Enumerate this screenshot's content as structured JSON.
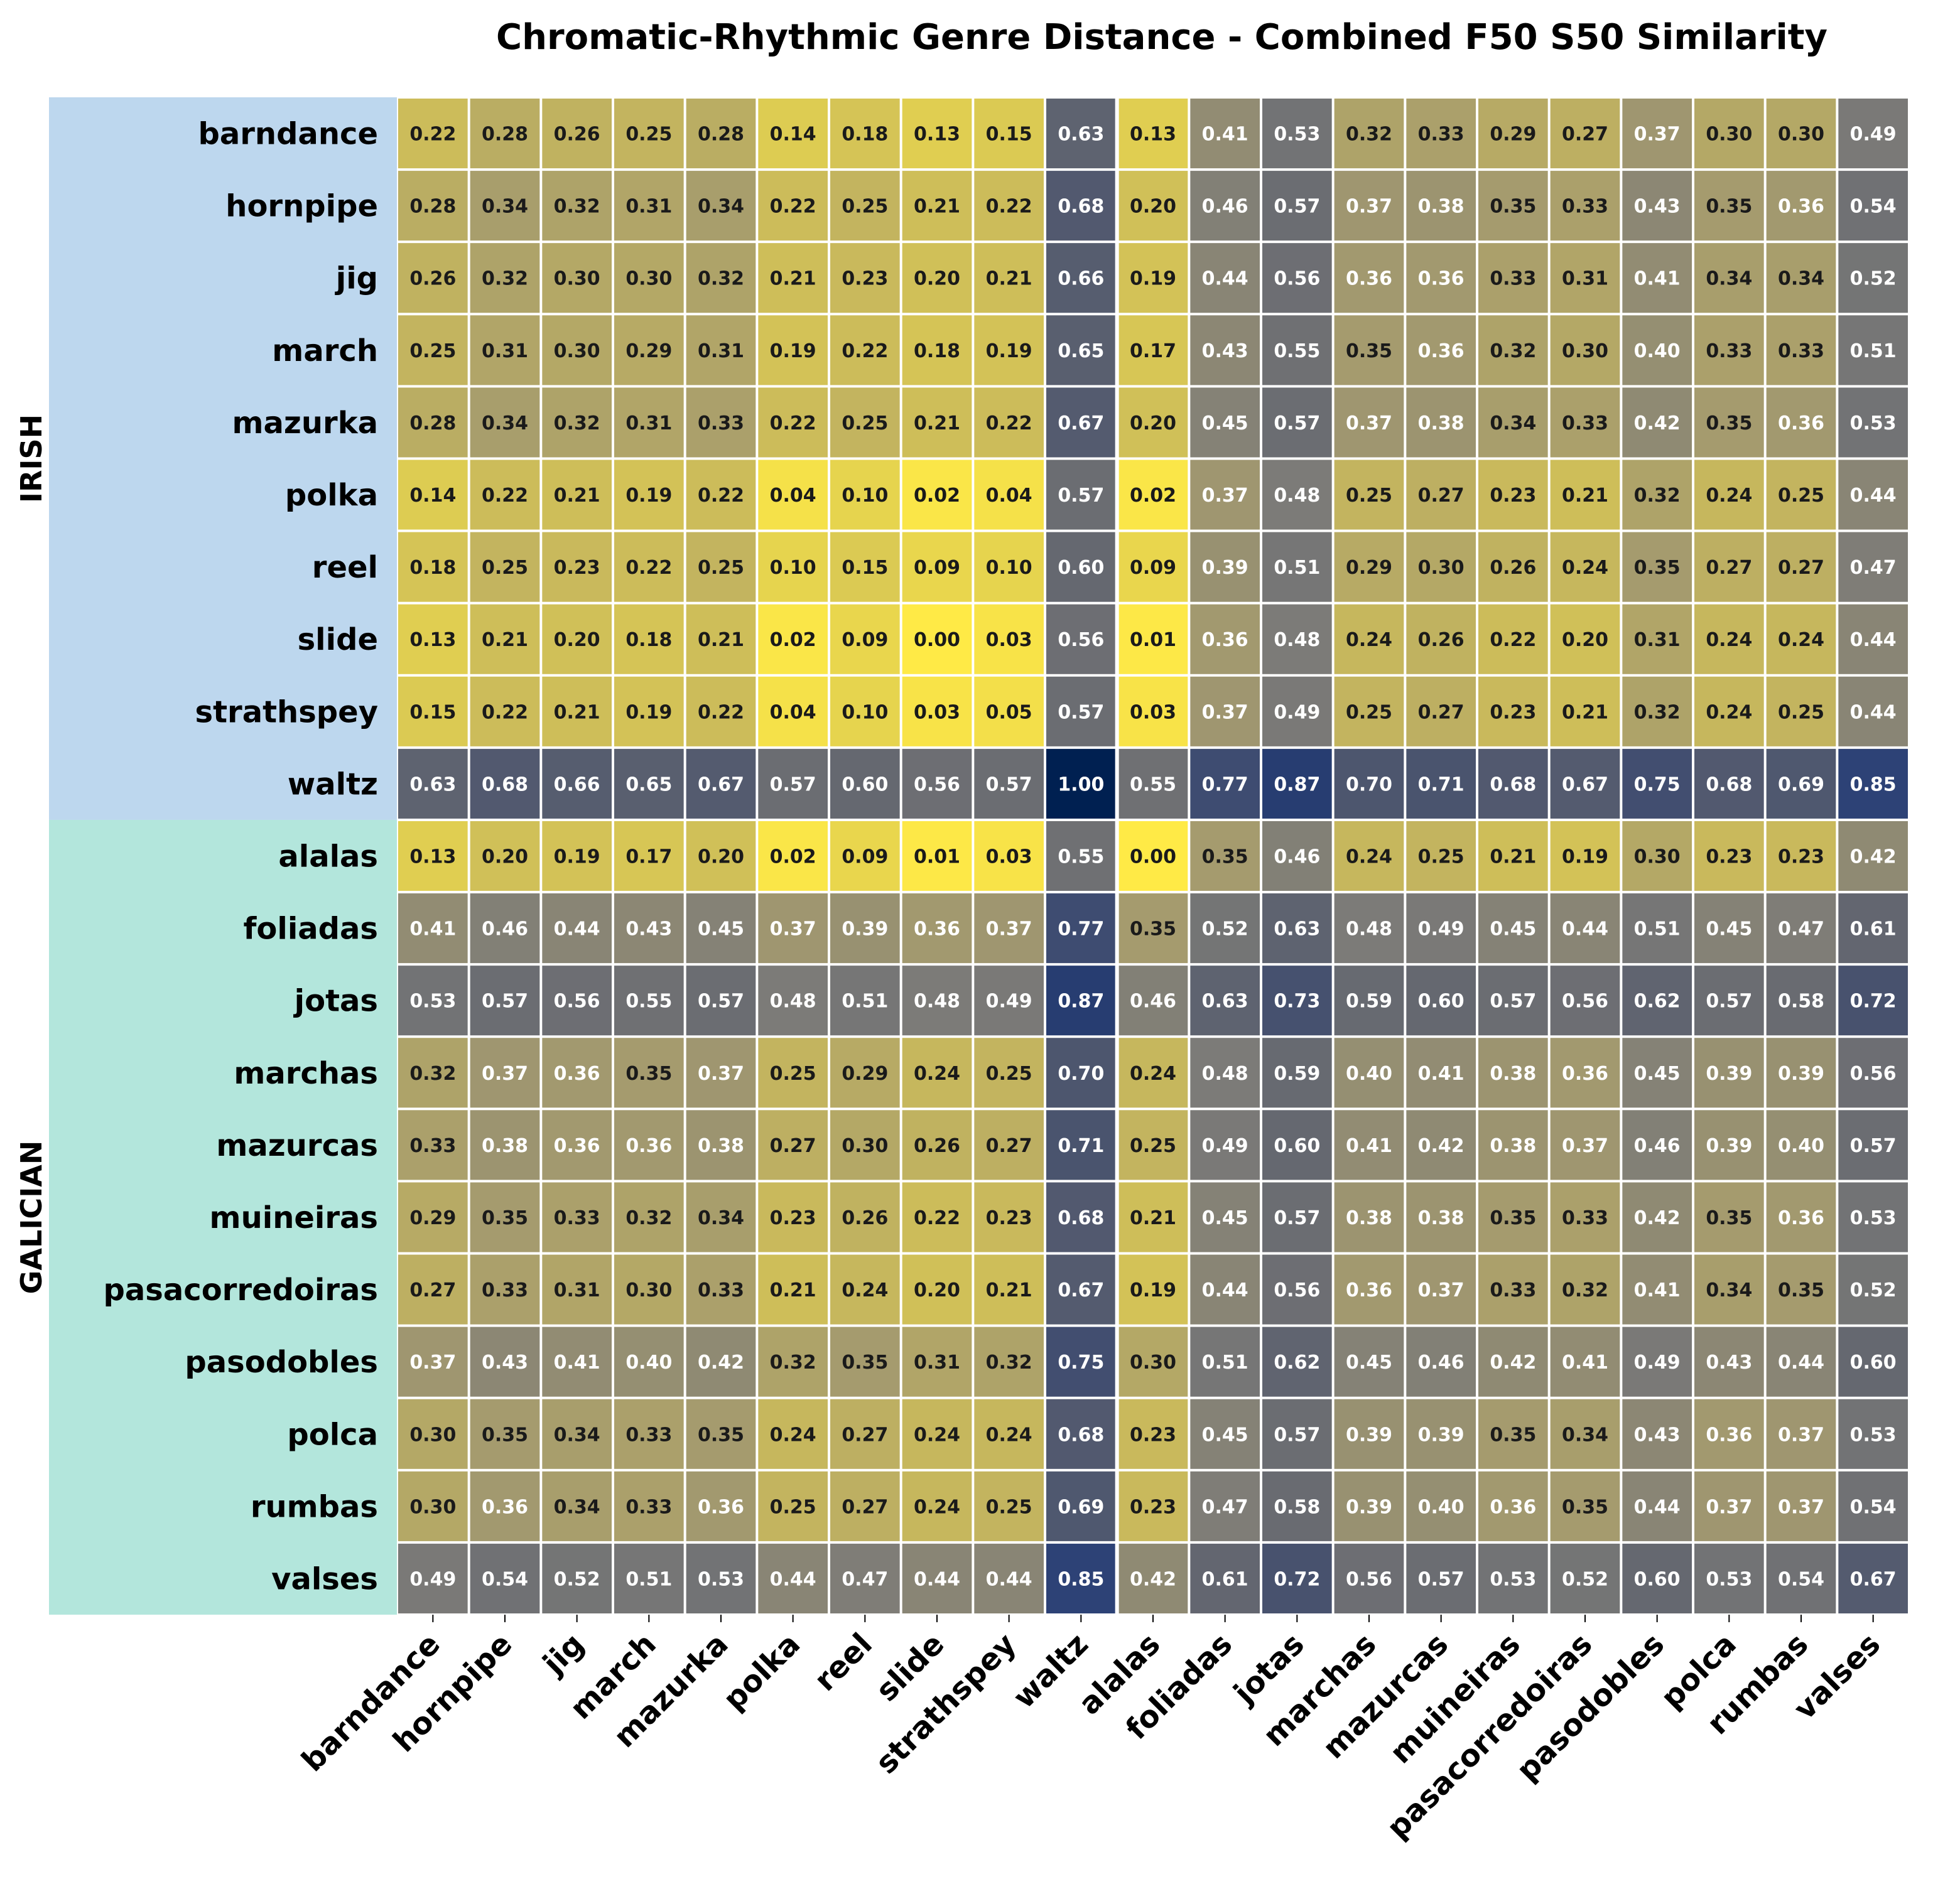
{
  "chart_data": {
    "type": "heatmap",
    "title": "Chromatic-Rhythmic Genre Distance - Combined F50 S50 Similarity",
    "rows": [
      "barndance",
      "hornpipe",
      "jig",
      "march",
      "mazurka",
      "polka",
      "reel",
      "slide",
      "strathspey",
      "waltz",
      "alalas",
      "foliadas",
      "jotas",
      "marchas",
      "mazurcas",
      "muineiras",
      "pasacorredoiras",
      "pasodobles",
      "polca",
      "rumbas",
      "valses"
    ],
    "columns": [
      "barndance",
      "hornpipe",
      "jig",
      "march",
      "mazurka",
      "polka",
      "reel",
      "slide",
      "strathspey",
      "waltz",
      "alalas",
      "foliadas",
      "jotas",
      "marchas",
      "mazurcas",
      "muineiras",
      "pasacorredoiras",
      "pasodobles",
      "polca",
      "rumbas",
      "valses"
    ],
    "row_groups": [
      {
        "name": "IRISH",
        "count": 10,
        "color": "#bdd7ee"
      },
      {
        "name": "GALICIAN",
        "count": 11,
        "color": "#b3e6dc"
      }
    ],
    "values": [
      [
        0.22,
        0.28,
        0.26,
        0.25,
        0.28,
        0.14,
        0.18,
        0.13,
        0.15,
        0.63,
        0.13,
        0.41,
        0.53,
        0.32,
        0.33,
        0.29,
        0.27,
        0.37,
        0.3,
        0.3,
        0.49
      ],
      [
        0.28,
        0.34,
        0.32,
        0.31,
        0.34,
        0.22,
        0.25,
        0.21,
        0.22,
        0.68,
        0.2,
        0.46,
        0.57,
        0.37,
        0.38,
        0.35,
        0.33,
        0.43,
        0.35,
        0.36,
        0.54
      ],
      [
        0.26,
        0.32,
        0.3,
        0.3,
        0.32,
        0.21,
        0.23,
        0.2,
        0.21,
        0.66,
        0.19,
        0.44,
        0.56,
        0.36,
        0.36,
        0.33,
        0.31,
        0.41,
        0.34,
        0.34,
        0.52
      ],
      [
        0.25,
        0.31,
        0.3,
        0.29,
        0.31,
        0.19,
        0.22,
        0.18,
        0.19,
        0.65,
        0.17,
        0.43,
        0.55,
        0.35,
        0.36,
        0.32,
        0.3,
        0.4,
        0.33,
        0.33,
        0.51
      ],
      [
        0.28,
        0.34,
        0.32,
        0.31,
        0.33,
        0.22,
        0.25,
        0.21,
        0.22,
        0.67,
        0.2,
        0.45,
        0.57,
        0.37,
        0.38,
        0.34,
        0.33,
        0.42,
        0.35,
        0.36,
        0.53
      ],
      [
        0.14,
        0.22,
        0.21,
        0.19,
        0.22,
        0.04,
        0.1,
        0.02,
        0.04,
        0.57,
        0.02,
        0.37,
        0.48,
        0.25,
        0.27,
        0.23,
        0.21,
        0.32,
        0.24,
        0.25,
        0.44
      ],
      [
        0.18,
        0.25,
        0.23,
        0.22,
        0.25,
        0.1,
        0.15,
        0.09,
        0.1,
        0.6,
        0.09,
        0.39,
        0.51,
        0.29,
        0.3,
        0.26,
        0.24,
        0.35,
        0.27,
        0.27,
        0.47
      ],
      [
        0.13,
        0.21,
        0.2,
        0.18,
        0.21,
        0.02,
        0.09,
        0.0,
        0.03,
        0.56,
        0.01,
        0.36,
        0.48,
        0.24,
        0.26,
        0.22,
        0.2,
        0.31,
        0.24,
        0.24,
        0.44
      ],
      [
        0.15,
        0.22,
        0.21,
        0.19,
        0.22,
        0.04,
        0.1,
        0.03,
        0.05,
        0.57,
        0.03,
        0.37,
        0.49,
        0.25,
        0.27,
        0.23,
        0.21,
        0.32,
        0.24,
        0.25,
        0.44
      ],
      [
        0.63,
        0.68,
        0.66,
        0.65,
        0.67,
        0.57,
        0.6,
        0.56,
        0.57,
        1.0,
        0.55,
        0.77,
        0.87,
        0.7,
        0.71,
        0.68,
        0.67,
        0.75,
        0.68,
        0.69,
        0.85
      ],
      [
        0.13,
        0.2,
        0.19,
        0.17,
        0.2,
        0.02,
        0.09,
        0.01,
        0.03,
        0.55,
        0.0,
        0.35,
        0.46,
        0.24,
        0.25,
        0.21,
        0.19,
        0.3,
        0.23,
        0.23,
        0.42
      ],
      [
        0.41,
        0.46,
        0.44,
        0.43,
        0.45,
        0.37,
        0.39,
        0.36,
        0.37,
        0.77,
        0.35,
        0.52,
        0.63,
        0.48,
        0.49,
        0.45,
        0.44,
        0.51,
        0.45,
        0.47,
        0.61
      ],
      [
        0.53,
        0.57,
        0.56,
        0.55,
        0.57,
        0.48,
        0.51,
        0.48,
        0.49,
        0.87,
        0.46,
        0.63,
        0.73,
        0.59,
        0.6,
        0.57,
        0.56,
        0.62,
        0.57,
        0.58,
        0.72
      ],
      [
        0.32,
        0.37,
        0.36,
        0.35,
        0.37,
        0.25,
        0.29,
        0.24,
        0.25,
        0.7,
        0.24,
        0.48,
        0.59,
        0.4,
        0.41,
        0.38,
        0.36,
        0.45,
        0.39,
        0.39,
        0.56
      ],
      [
        0.33,
        0.38,
        0.36,
        0.36,
        0.38,
        0.27,
        0.3,
        0.26,
        0.27,
        0.71,
        0.25,
        0.49,
        0.6,
        0.41,
        0.42,
        0.38,
        0.37,
        0.46,
        0.39,
        0.4,
        0.57
      ],
      [
        0.29,
        0.35,
        0.33,
        0.32,
        0.34,
        0.23,
        0.26,
        0.22,
        0.23,
        0.68,
        0.21,
        0.45,
        0.57,
        0.38,
        0.38,
        0.35,
        0.33,
        0.42,
        0.35,
        0.36,
        0.53
      ],
      [
        0.27,
        0.33,
        0.31,
        0.3,
        0.33,
        0.21,
        0.24,
        0.2,
        0.21,
        0.67,
        0.19,
        0.44,
        0.56,
        0.36,
        0.37,
        0.33,
        0.32,
        0.41,
        0.34,
        0.35,
        0.52
      ],
      [
        0.37,
        0.43,
        0.41,
        0.4,
        0.42,
        0.32,
        0.35,
        0.31,
        0.32,
        0.75,
        0.3,
        0.51,
        0.62,
        0.45,
        0.46,
        0.42,
        0.41,
        0.49,
        0.43,
        0.44,
        0.6
      ],
      [
        0.3,
        0.35,
        0.34,
        0.33,
        0.35,
        0.24,
        0.27,
        0.24,
        0.24,
        0.68,
        0.23,
        0.45,
        0.57,
        0.39,
        0.39,
        0.35,
        0.34,
        0.43,
        0.36,
        0.37,
        0.53
      ],
      [
        0.3,
        0.36,
        0.34,
        0.33,
        0.36,
        0.25,
        0.27,
        0.24,
        0.25,
        0.69,
        0.23,
        0.47,
        0.58,
        0.39,
        0.4,
        0.36,
        0.35,
        0.44,
        0.37,
        0.37,
        0.54
      ],
      [
        0.49,
        0.54,
        0.52,
        0.51,
        0.53,
        0.44,
        0.47,
        0.44,
        0.44,
        0.85,
        0.42,
        0.61,
        0.72,
        0.56,
        0.57,
        0.53,
        0.52,
        0.6,
        0.53,
        0.54,
        0.67
      ]
    ],
    "value_range": [
      0,
      1
    ],
    "colormap": "cividis_r",
    "column_divider_after": "waltz",
    "colorbar": false
  }
}
